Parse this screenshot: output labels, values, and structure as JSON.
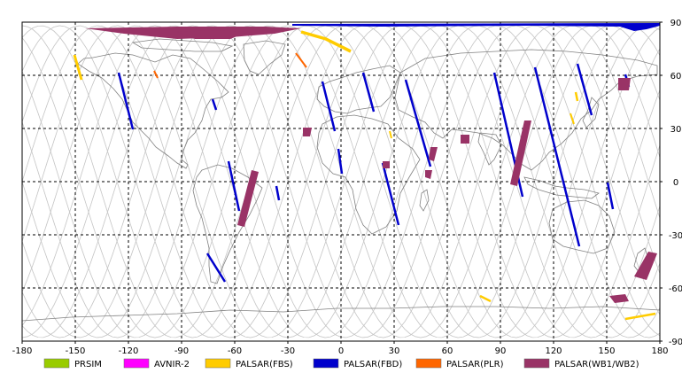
{
  "map": {
    "x_ticks": [
      "-180",
      "-150",
      "-120",
      "-90",
      "-60",
      "-30",
      "0",
      "30",
      "60",
      "90",
      "120",
      "150",
      "180"
    ],
    "y_ticks": [
      "90",
      "60",
      "30",
      "0",
      "-30",
      "-60",
      "-90"
    ],
    "lon_range": [
      -180,
      180
    ],
    "lat_range": [
      -90,
      90
    ],
    "grid": "dashed",
    "projection": "equirectangular",
    "colors": {
      "prsim": "#99cc00",
      "avnir": "#ff00ff",
      "palsar_fbs": "#ffcc00",
      "palsar_fbd": "#0000cc",
      "palsar_plr": "#ff6600",
      "palsar_wb": "#993366",
      "orbit": "#c8c8c8",
      "coast": "#808080"
    }
  },
  "legend": [
    {
      "label": "PRSIM",
      "color": "#99cc00"
    },
    {
      "label": "AVNIR-2",
      "color": "#ff00ff"
    },
    {
      "label": "PALSAR(FBS)",
      "color": "#ffcc00"
    },
    {
      "label": "PALSAR(FBD)",
      "color": "#0000cc"
    },
    {
      "label": "PALSAR(PLR)",
      "color": "#ff6600"
    },
    {
      "label": "PALSAR(WB1/WB2)",
      "color": "#993366"
    }
  ]
}
